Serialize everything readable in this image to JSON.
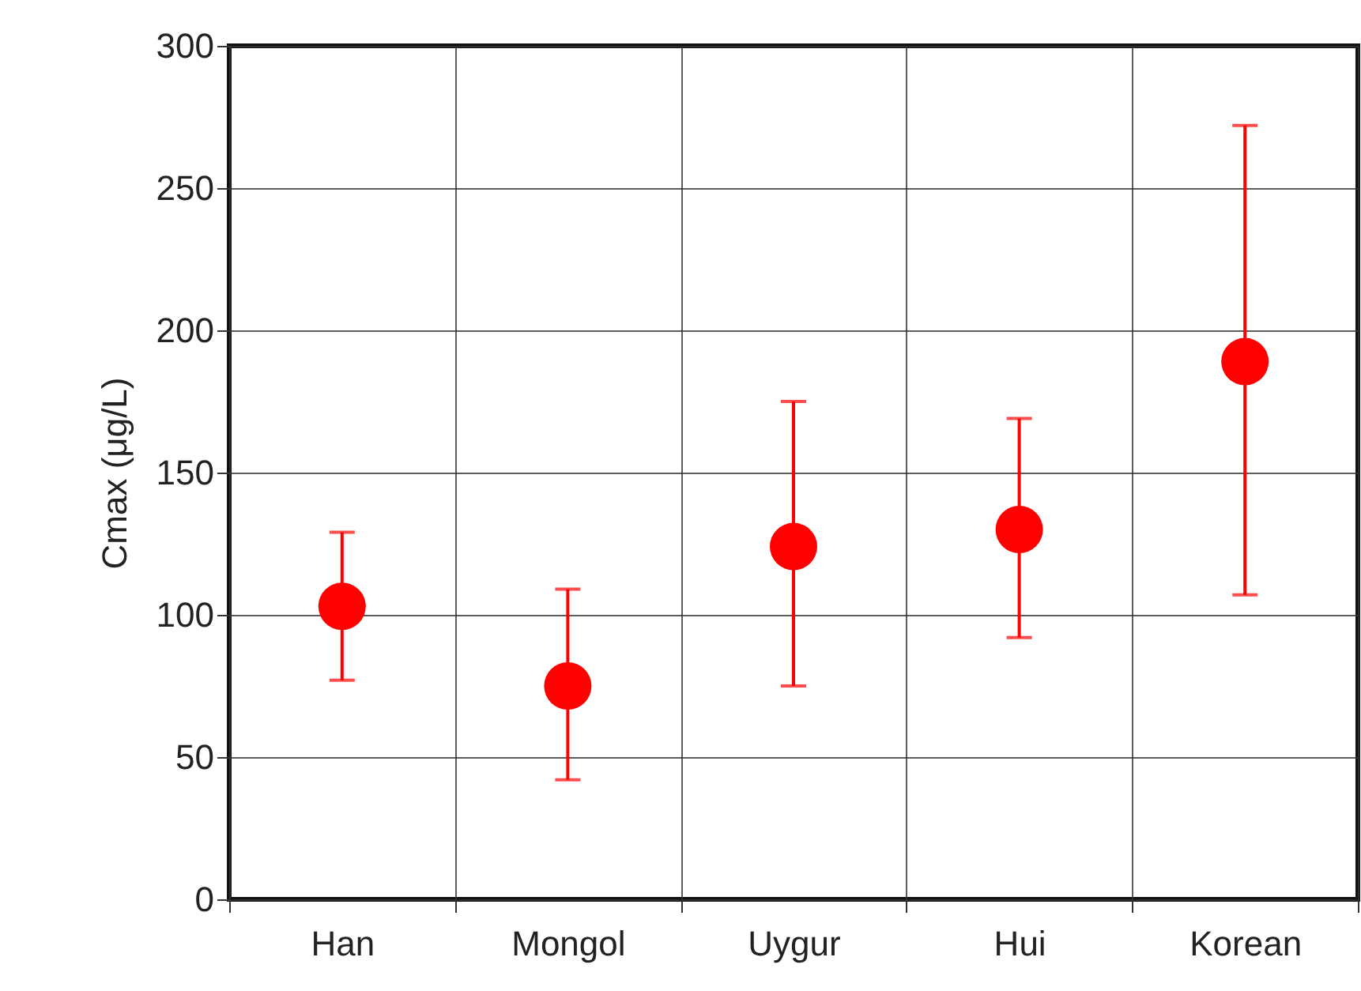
{
  "chart_data": {
    "type": "scatter",
    "ylabel": "Cmax (μg/L)",
    "categories": [
      "Han",
      "Mongol",
      "Uygur",
      "Hui",
      "Korean"
    ],
    "series": [
      {
        "color": "#ff0000",
        "values": [
          103,
          75,
          124,
          130,
          189
        ],
        "errors": [
          [
            77,
            129
          ],
          [
            42,
            109
          ],
          [
            75,
            175
          ],
          [
            92,
            169
          ],
          [
            107,
            272
          ]
        ]
      }
    ],
    "ylim": [
      0,
      300
    ],
    "yticks": [
      0,
      50,
      100,
      150,
      200,
      250,
      300
    ],
    "grid": true,
    "marker": "circle",
    "legend": false
  }
}
